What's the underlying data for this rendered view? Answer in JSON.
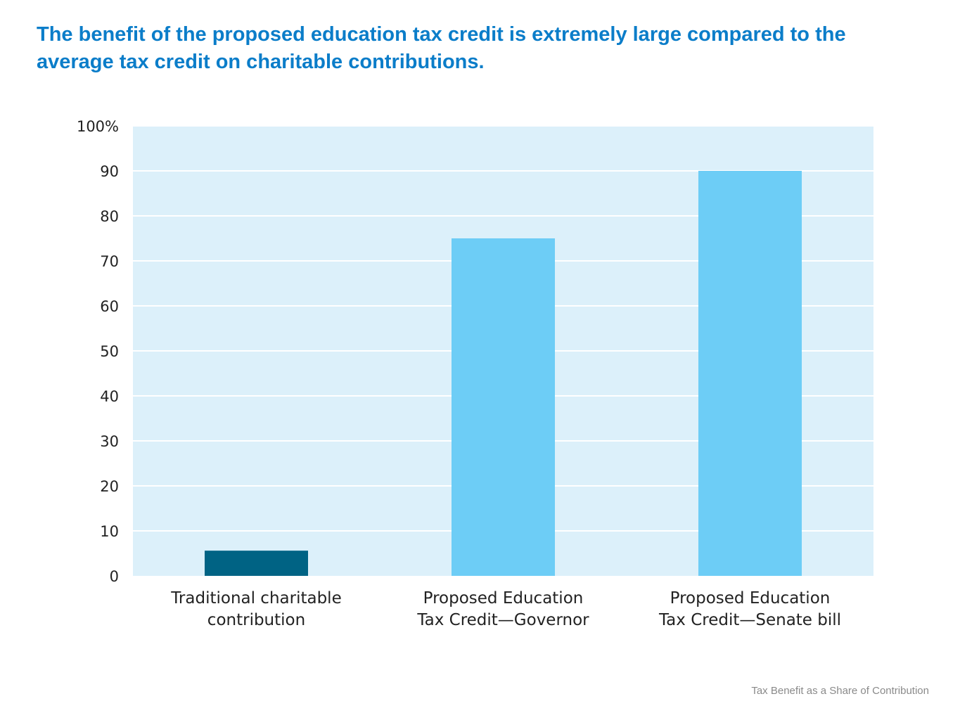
{
  "title": "The benefit of the proposed education tax credit is extremely large compared to the average tax credit on charitable contributions.",
  "footnote": "Tax Benefit as a Share of Contribution",
  "colors": {
    "plot_background": "#dcf0fa",
    "gridline": "#ffffff",
    "highlight_bar": "#006384",
    "default_bar": "#6dcdf6"
  },
  "chart_data": {
    "type": "bar",
    "categories": [
      [
        "Traditional charitable",
        "contribution"
      ],
      [
        "Proposed Education",
        "Tax Credit—Governor"
      ],
      [
        "Proposed Education",
        "Tax Credit—Senate bill"
      ]
    ],
    "values": [
      5.6,
      75,
      90
    ],
    "bar_colors": [
      "#006384",
      "#6dcdf6",
      "#6dcdf6"
    ],
    "ylim": [
      0,
      100
    ],
    "yticks": [
      0,
      10,
      20,
      30,
      40,
      50,
      60,
      70,
      80,
      90,
      100
    ],
    "ytick_labels": [
      "0",
      "10",
      "20",
      "30",
      "40",
      "50",
      "60",
      "70",
      "80",
      "90",
      "100%"
    ],
    "grid": true,
    "legend": "none"
  }
}
